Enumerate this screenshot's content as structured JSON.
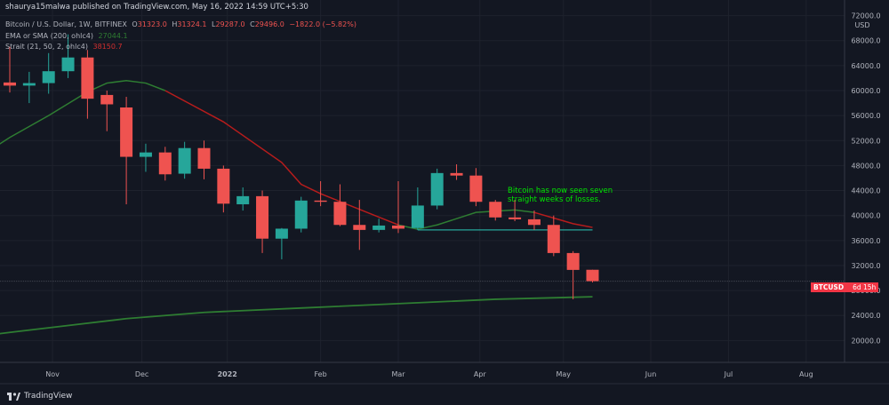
{
  "header": {
    "published": "shaurya15malwa published on TradingView.com, May 16, 2022 14:59 UTC+5:30",
    "symbol_desc": "Bitcoin / U.S. Dollar, 1W, BITFINEX",
    "o_label": "O",
    "o_val": "31323.0",
    "h_label": "H",
    "h_val": "31324.1",
    "l_label": "L",
    "l_val": "29287.0",
    "c_label": "C",
    "c_val": "29496.0",
    "change": "−1822.0 (−5.82%)",
    "ind1_name": "EMA or SMA (200, ohlc4)",
    "ind1_val": "27044.1",
    "ind2_name": "Strait (21, 50, 2, ohlc4)",
    "ind2_val": "38150.7"
  },
  "footer": {
    "brand": "TradingView"
  },
  "annotation": {
    "line1": "Bitcoin has now seen seven",
    "line2": "straight weeks of losses."
  },
  "price_tag": {
    "symbol": "BTCUSD",
    "countdown": "6d 15h"
  },
  "colors": {
    "background": "#131722",
    "up": "#26a69a",
    "down": "#ef5350",
    "ema": "#2e7d32",
    "strait": "#b71c1c",
    "annotation": "#00e600"
  },
  "chart_data": {
    "type": "candlestick",
    "y_axis_label": "USD",
    "ylim": [
      16500,
      74500
    ],
    "y_ticks": [
      20000,
      24000,
      28000,
      32000,
      36000,
      40000,
      44000,
      48000,
      52000,
      56000,
      60000,
      64000,
      68000,
      72000
    ],
    "y_tick_labels": [
      "20000.0",
      "24000.0",
      "28000.0",
      "32000.0",
      "36000.0",
      "40000.0",
      "44000.0",
      "48000.0",
      "52000.0",
      "56000.0",
      "60000.0",
      "64000.0",
      "68000.0",
      "72000.0"
    ],
    "x_ticks": [
      {
        "label": "Nov",
        "week": 2.2
      },
      {
        "label": "Dec",
        "week": 6.8
      },
      {
        "label": "2022",
        "week": 11.2
      },
      {
        "label": "Feb",
        "week": 16
      },
      {
        "label": "Mar",
        "week": 20
      },
      {
        "label": "Apr",
        "week": 24.2
      },
      {
        "label": "May",
        "week": 28.5
      },
      {
        "label": "Jun",
        "week": 33
      },
      {
        "label": "Jul",
        "week": 37
      },
      {
        "label": "Aug",
        "week": 41
      }
    ],
    "candles": [
      {
        "o": 61300,
        "h": 67000,
        "l": 59700,
        "c": 60800
      },
      {
        "o": 60800,
        "h": 63000,
        "l": 58000,
        "c": 61200
      },
      {
        "o": 61200,
        "h": 66000,
        "l": 59500,
        "c": 63100
      },
      {
        "o": 63100,
        "h": 69000,
        "l": 62000,
        "c": 65300
      },
      {
        "o": 65300,
        "h": 66500,
        "l": 55500,
        "c": 58700
      },
      {
        "o": 59300,
        "h": 60000,
        "l": 53500,
        "c": 57800
      },
      {
        "o": 57300,
        "h": 59000,
        "l": 41800,
        "c": 49400
      },
      {
        "o": 49400,
        "h": 51500,
        "l": 47000,
        "c": 50100
      },
      {
        "o": 50100,
        "h": 51000,
        "l": 45600,
        "c": 46600
      },
      {
        "o": 46700,
        "h": 51800,
        "l": 45900,
        "c": 50800
      },
      {
        "o": 50800,
        "h": 52000,
        "l": 45800,
        "c": 47500
      },
      {
        "o": 47500,
        "h": 48000,
        "l": 40500,
        "c": 41900
      },
      {
        "o": 41800,
        "h": 44500,
        "l": 40800,
        "c": 43100
      },
      {
        "o": 43100,
        "h": 44000,
        "l": 34000,
        "c": 36300
      },
      {
        "o": 36300,
        "h": 38000,
        "l": 33000,
        "c": 37900
      },
      {
        "o": 37900,
        "h": 43000,
        "l": 37300,
        "c": 42400
      },
      {
        "o": 42400,
        "h": 45500,
        "l": 41500,
        "c": 42200
      },
      {
        "o": 42200,
        "h": 45000,
        "l": 38300,
        "c": 38500
      },
      {
        "o": 38500,
        "h": 42500,
        "l": 34500,
        "c": 37700
      },
      {
        "o": 37700,
        "h": 39500,
        "l": 37300,
        "c": 38400
      },
      {
        "o": 38400,
        "h": 45500,
        "l": 37200,
        "c": 37900
      },
      {
        "o": 38000,
        "h": 44500,
        "l": 37700,
        "c": 41600
      },
      {
        "o": 41600,
        "h": 47500,
        "l": 41000,
        "c": 46800
      },
      {
        "o": 46800,
        "h": 48200,
        "l": 45700,
        "c": 46400
      },
      {
        "o": 46400,
        "h": 47600,
        "l": 41500,
        "c": 42200
      },
      {
        "o": 42200,
        "h": 42500,
        "l": 39200,
        "c": 39700
      },
      {
        "o": 39700,
        "h": 42500,
        "l": 39100,
        "c": 39400
      },
      {
        "o": 39400,
        "h": 40800,
        "l": 37700,
        "c": 38500
      },
      {
        "o": 38500,
        "h": 40000,
        "l": 33500,
        "c": 34000
      },
      {
        "o": 34000,
        "h": 34300,
        "l": 26600,
        "c": 31300
      },
      {
        "o": 31323,
        "h": 31324.1,
        "l": 29287,
        "c": 29496
      }
    ],
    "ema_200": [
      {
        "week": -1,
        "value": 50500
      },
      {
        "week": 0,
        "value": 52500
      },
      {
        "week": 2,
        "value": 56000
      },
      {
        "week": 4,
        "value": 59800
      },
      {
        "week": 5,
        "value": 61200
      },
      {
        "week": 6,
        "value": 61600
      },
      {
        "week": 7,
        "value": 61200
      },
      {
        "week": 8,
        "value": 60000
      },
      {
        "week": 11,
        "value": 55000
      },
      {
        "week": 14,
        "value": 48500
      },
      {
        "week": 15,
        "value": 45000
      },
      {
        "week": 16,
        "value": 43500
      },
      {
        "week": 18,
        "value": 41000
      },
      {
        "week": 20,
        "value": 38500
      },
      {
        "week": 21,
        "value": 37800
      },
      {
        "week": 22,
        "value": 38500
      },
      {
        "week": 24,
        "value": 40500
      },
      {
        "week": 26,
        "value": 40900
      },
      {
        "week": 27,
        "value": 40500
      },
      {
        "week": 28,
        "value": 39600
      },
      {
        "week": 29,
        "value": 38700
      },
      {
        "week": 30,
        "value": 38100
      }
    ],
    "long_ma": [
      {
        "week": -1,
        "value": 20900
      },
      {
        "week": 0,
        "value": 21300
      },
      {
        "week": 3,
        "value": 22400
      },
      {
        "week": 6,
        "value": 23500
      },
      {
        "week": 10,
        "value": 24500
      },
      {
        "week": 15,
        "value": 25200
      },
      {
        "week": 20,
        "value": 25900
      },
      {
        "week": 25,
        "value": 26600
      },
      {
        "week": 30,
        "value": 27000
      }
    ],
    "support_line": {
      "from_week": 21,
      "to_week": 30,
      "value": 37700
    },
    "current_price": 29496
  }
}
